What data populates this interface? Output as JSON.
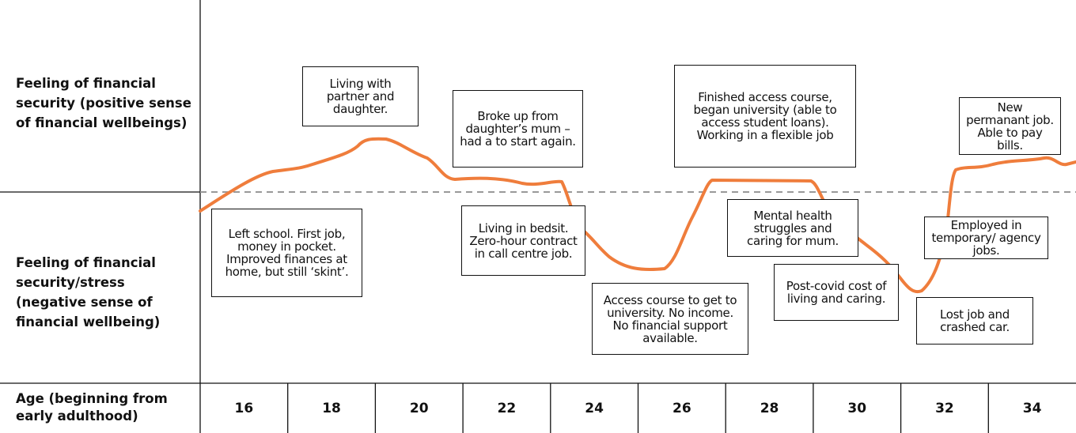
{
  "rows": {
    "positive": "Feeling of financial security (positive sense of financial wellbeings)",
    "negative": "Feeling of financial security/stress (negative sense of financial wellbeing)",
    "age": "Age (beginning from early adulthood)"
  },
  "ages": [
    "16",
    "18",
    "20",
    "22",
    "24",
    "26",
    "28",
    "30",
    "32",
    "34"
  ],
  "annotations": [
    "Left school. First job, money in pocket. Improved finances at home, but still ‘skint’.",
    "Living with partner and daughter.",
    "Broke up from daughter’s mum – had a to start again.",
    "Living in bedsit. Zero-hour contract in call centre job.",
    "Access course to get to university. No income. No financial support available.",
    "Finished access course, began university (able to access student loans). Working in a flexible job",
    "Mental health struggles and caring for mum.",
    "Post-covid cost of living and caring.",
    "Lost job and crashed car.",
    "Employed in temporary/ agency jobs.",
    "New permanant job. Able to pay bills."
  ]
}
